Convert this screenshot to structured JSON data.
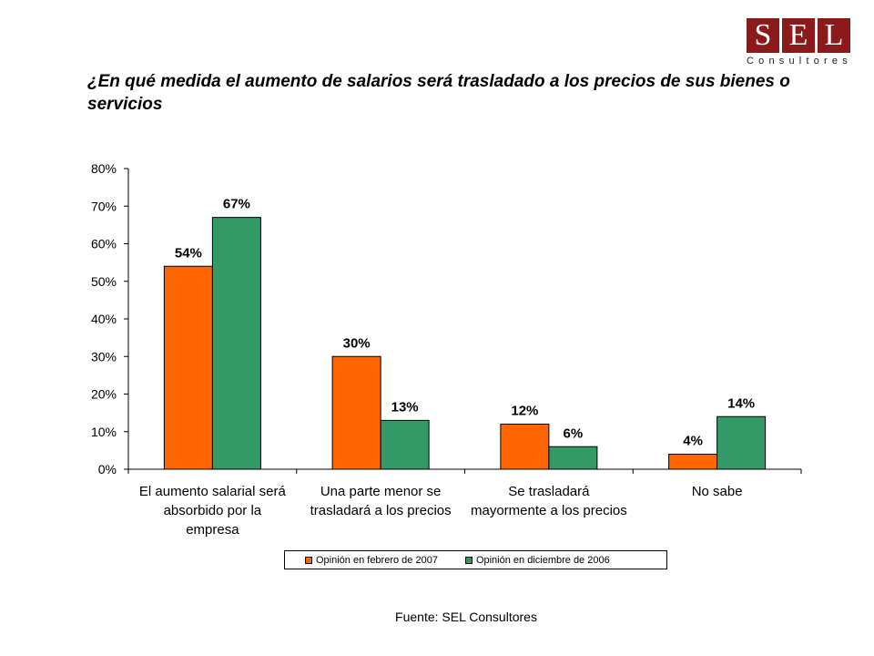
{
  "logo": {
    "letters": [
      "S",
      "E",
      "L"
    ],
    "subtitle": "Consultores",
    "color": "#8b1a1a"
  },
  "title": "¿En qué medida el aumento de salarios será trasladado a los precios de sus bienes o servicios",
  "source": "Fuente: SEL Consultores",
  "chart_data": {
    "type": "bar",
    "title": "",
    "xlabel": "",
    "ylabel": "",
    "ylim": [
      0,
      80
    ],
    "yticks": [
      "0%",
      "10%",
      "20%",
      "30%",
      "40%",
      "50%",
      "60%",
      "70%",
      "80%"
    ],
    "grid": false,
    "legend_position": "bottom",
    "categories": [
      [
        "El aumento salarial será",
        "absorbido por la",
        "empresa"
      ],
      [
        "Una parte menor se",
        "trasladará a los precios"
      ],
      [
        "Se trasladará",
        "mayormente a los precios"
      ],
      [
        "No sabe"
      ]
    ],
    "series": [
      {
        "name": "Opinión en febrero de 2007",
        "color": "#ff6600",
        "values": [
          54,
          30,
          12,
          4
        ],
        "labels": [
          "54%",
          "30%",
          "12%",
          "4%"
        ]
      },
      {
        "name": "Opinión en diciembre de 2006",
        "color": "#339966",
        "values": [
          67,
          13,
          6,
          14
        ],
        "labels": [
          "67%",
          "13%",
          "6%",
          "14%"
        ]
      }
    ]
  }
}
